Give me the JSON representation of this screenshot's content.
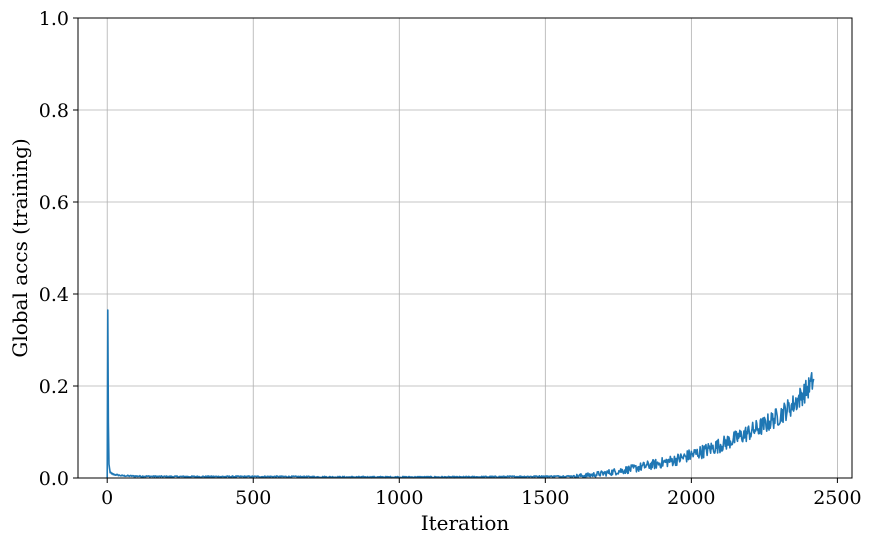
{
  "chart_data": {
    "type": "line",
    "title": "",
    "xlabel": "Iteration",
    "ylabel": "Global accs (training)",
    "xlim": [
      -100,
      2550
    ],
    "ylim": [
      0.0,
      1.0
    ],
    "xticks": [
      0,
      500,
      1000,
      1500,
      2000,
      2500
    ],
    "xtick_labels": [
      "0",
      "500",
      "1000",
      "1500",
      "2000",
      "2500"
    ],
    "yticks": [
      0.0,
      0.2,
      0.4,
      0.6,
      0.8,
      1.0
    ],
    "ytick_labels": [
      "0.0",
      "0.2",
      "0.4",
      "0.6",
      "0.8",
      "1.0"
    ],
    "grid": true,
    "series": [
      {
        "color": "#1f77b4",
        "x": [
          0,
          2,
          4,
          6,
          10,
          20,
          50,
          100,
          200,
          400,
          600,
          800,
          1000,
          1200,
          1400,
          1600,
          1650,
          1700,
          1750,
          1800,
          1850,
          1900,
          1950,
          2000,
          2050,
          2100,
          2150,
          2200,
          2250,
          2300,
          2350,
          2400,
          2420
        ],
        "y": [
          0.0,
          0.365,
          0.12,
          0.03,
          0.012,
          0.008,
          0.005,
          0.004,
          0.003,
          0.003,
          0.003,
          0.002,
          0.002,
          0.002,
          0.003,
          0.004,
          0.006,
          0.01,
          0.015,
          0.02,
          0.027,
          0.033,
          0.04,
          0.05,
          0.06,
          0.072,
          0.085,
          0.1,
          0.115,
          0.135,
          0.16,
          0.195,
          0.215
        ]
      }
    ]
  }
}
